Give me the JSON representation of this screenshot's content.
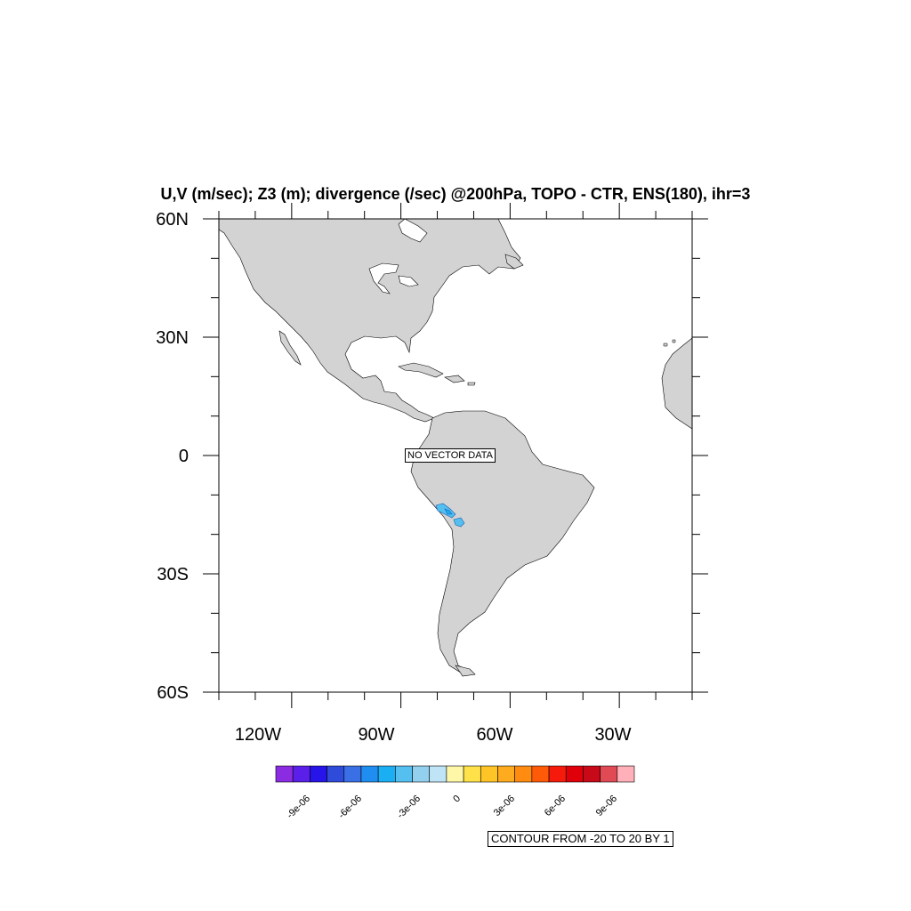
{
  "title": "U,V (m/sec); Z3 (m); divergence (/sec) @200hPa, TOPO - CTR, ENS(180), ihr=3",
  "map": {
    "projection": "cylindrical-equidistant",
    "lon_range": [
      -140,
      -10
    ],
    "lat_range": [
      -60,
      60
    ],
    "land_color": "#d3d3d3",
    "ocean_color": "#ffffff",
    "lat_labels": [
      "60N",
      "30N",
      "0",
      "30S",
      "60S"
    ],
    "lon_labels": [
      "120W",
      "90W",
      "60W",
      "30W"
    ]
  },
  "no_vector_label": "NO VECTOR DATA",
  "colorbar": {
    "colors": [
      "#8b2be2",
      "#5a1fe8",
      "#2614e8",
      "#2f4bd9",
      "#3a6fe6",
      "#1f8ef0",
      "#1aaef2",
      "#55bff0",
      "#93cfee",
      "#bfe4f5",
      "#fff7a8",
      "#ffe14a",
      "#ffc526",
      "#ffab1f",
      "#ff8c10",
      "#ff5a08",
      "#f51a0c",
      "#e0000a",
      "#c80a18",
      "#e04a55",
      "#ffb0b8"
    ],
    "labels": [
      "-9e-06",
      "-6e-06",
      "-3e-06",
      "0",
      "3e-06",
      "6e-06",
      "9e-06"
    ]
  },
  "contour_note": "CONTOUR FROM -20 TO 20 BY 1"
}
